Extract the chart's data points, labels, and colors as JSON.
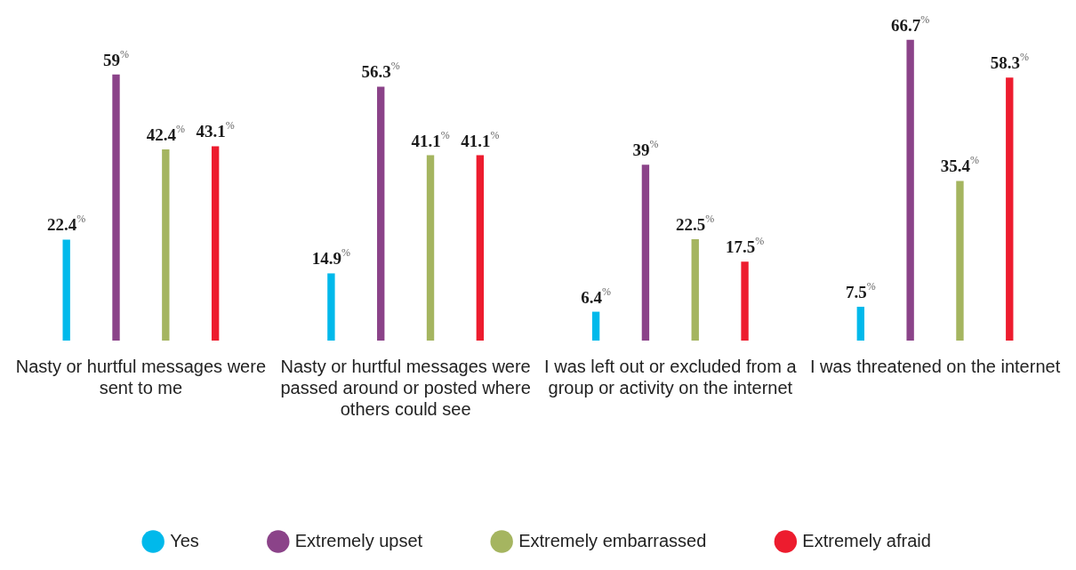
{
  "chart_data": {
    "type": "bar",
    "categories": [
      "Nasty or hurtful messages were sent to me",
      "Nasty or hurtful messages were passed around or posted where others could see",
      "I was left out or excluded from a group or activity on the internet",
      "I was threatened on the internet"
    ],
    "series": [
      {
        "name": "Yes",
        "color": "#00b9eb",
        "values": [
          22.4,
          14.9,
          6.4,
          7.5
        ],
        "value_labels": [
          "22.4$^{%}$",
          "14.9$^{%}$",
          "6.4$^{%}$",
          "7.5$^{%}$"
        ]
      },
      {
        "name": "Extremely upset",
        "color": "#8b4389",
        "values": [
          59,
          56.3,
          39,
          66.7
        ],
        "value_labels": [
          "59$^{%}$",
          "56.3$^{%}$",
          "39$^{%}$",
          "66.7$^{%}$"
        ]
      },
      {
        "name": "Extremely embarrassed",
        "color": "#a5b560",
        "values": [
          42.4,
          41.1,
          22.5,
          35.4
        ],
        "value_labels": [
          "42.4$^{%}$",
          "41.1$^{%}$",
          "22.5$^{%}$",
          "35.4$^{%}$"
        ]
      },
      {
        "name": "Extremely afraid",
        "color": "#ed1c2e",
        "values": [
          43.1,
          41.1,
          17.5,
          58.3
        ],
        "value_labels": [
          "43.1$^{%}$",
          "41.1$^{%}$",
          "17.5$^{%}$",
          "58.3$^{%}$"
        ]
      }
    ],
    "legend": "bottom"
  }
}
